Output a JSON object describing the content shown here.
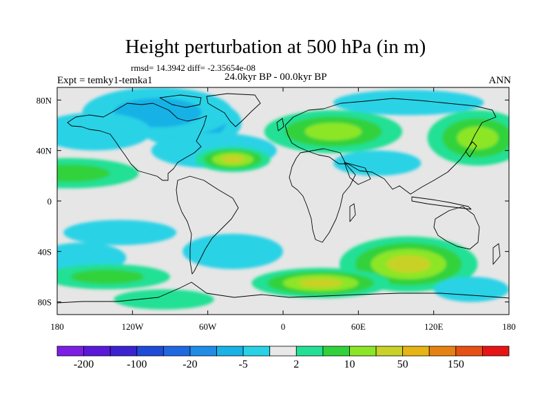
{
  "title": "Height perturbation at 500 hPa (in m)",
  "stats_text": "rmsd= 14.3942 diff= -2.35654e-08",
  "experiment_label": "Expt = temky1-temka1",
  "period_label": "24.0kyr BP - 00.0kyr BP",
  "season_label": "ANN",
  "map": {
    "projection": "cylindrical-equidistant",
    "lon_range": [
      -180,
      180
    ],
    "lat_range": [
      -90,
      90
    ],
    "lat_ticks": [
      {
        "value": 80,
        "label": "80N"
      },
      {
        "value": 40,
        "label": "40N"
      },
      {
        "value": 0,
        "label": "0"
      },
      {
        "value": -40,
        "label": "40S"
      },
      {
        "value": -80,
        "label": "80S"
      }
    ],
    "lon_ticks": [
      {
        "value": -180,
        "label": "180"
      },
      {
        "value": -120,
        "label": "120W"
      },
      {
        "value": -60,
        "label": "60W"
      },
      {
        "value": 0,
        "label": "0"
      },
      {
        "value": 60,
        "label": "60E"
      },
      {
        "value": 120,
        "label": "120E"
      },
      {
        "value": 180,
        "label": "180"
      }
    ],
    "ocean_color": "#e6e6e6",
    "coast_color": "#000000"
  },
  "colorbar": {
    "colors": [
      "#7d1ee6",
      "#5a19d8",
      "#3b23d2",
      "#1e4bd7",
      "#1e69e1",
      "#1f8ce6",
      "#19b2e6",
      "#2ad2e6",
      "#e8e8e8",
      "#24e094",
      "#32d23c",
      "#8ce628",
      "#c8d228",
      "#e6b414",
      "#e68214",
      "#e65014",
      "#e61414"
    ],
    "labels": [
      {
        "boundary": 1,
        "text": "-200"
      },
      {
        "boundary": 3,
        "text": "-100"
      },
      {
        "boundary": 5,
        "text": "-20"
      },
      {
        "boundary": 7,
        "text": "-5"
      },
      {
        "boundary": 9,
        "text": "2"
      },
      {
        "boundary": 11,
        "text": "10"
      },
      {
        "boundary": 13,
        "text": "50"
      },
      {
        "boundary": 15,
        "text": "150"
      }
    ]
  },
  "field_anomalies": [
    {
      "lon": -75,
      "lat": 62,
      "rx": 42,
      "ry": 20,
      "level": -3
    },
    {
      "lon": -100,
      "lat": 70,
      "rx": 60,
      "ry": 20,
      "level": -2
    },
    {
      "lon": -150,
      "lat": 55,
      "rx": 45,
      "ry": 15,
      "level": -1
    },
    {
      "lon": -55,
      "lat": 40,
      "rx": 50,
      "ry": 14,
      "level": -1
    },
    {
      "lon": -40,
      "lat": 33,
      "rx": 30,
      "ry": 10,
      "level": 4
    },
    {
      "lon": 40,
      "lat": 55,
      "rx": 55,
      "ry": 17,
      "level": 3
    },
    {
      "lon": 155,
      "lat": 50,
      "rx": 40,
      "ry": 22,
      "level": 3
    },
    {
      "lon": 100,
      "lat": 78,
      "rx": 60,
      "ry": 10,
      "level": -1
    },
    {
      "lon": 75,
      "lat": 30,
      "rx": 35,
      "ry": 10,
      "level": -1
    },
    {
      "lon": -170,
      "lat": 22,
      "rx": 55,
      "ry": 12,
      "level": 2
    },
    {
      "lon": -130,
      "lat": -25,
      "rx": 45,
      "ry": 10,
      "level": -1
    },
    {
      "lon": -160,
      "lat": -45,
      "rx": 35,
      "ry": 12,
      "level": -1
    },
    {
      "lon": -40,
      "lat": -40,
      "rx": 40,
      "ry": 14,
      "level": -1
    },
    {
      "lon": -140,
      "lat": -60,
      "rx": 50,
      "ry": 10,
      "level": 2
    },
    {
      "lon": 100,
      "lat": -50,
      "rx": 55,
      "ry": 22,
      "level": 4
    },
    {
      "lon": 30,
      "lat": -65,
      "rx": 55,
      "ry": 12,
      "level": 4
    },
    {
      "lon": 150,
      "lat": -70,
      "rx": 30,
      "ry": 10,
      "level": -1
    },
    {
      "lon": -95,
      "lat": -78,
      "rx": 40,
      "ry": 8,
      "level": 1
    }
  ]
}
